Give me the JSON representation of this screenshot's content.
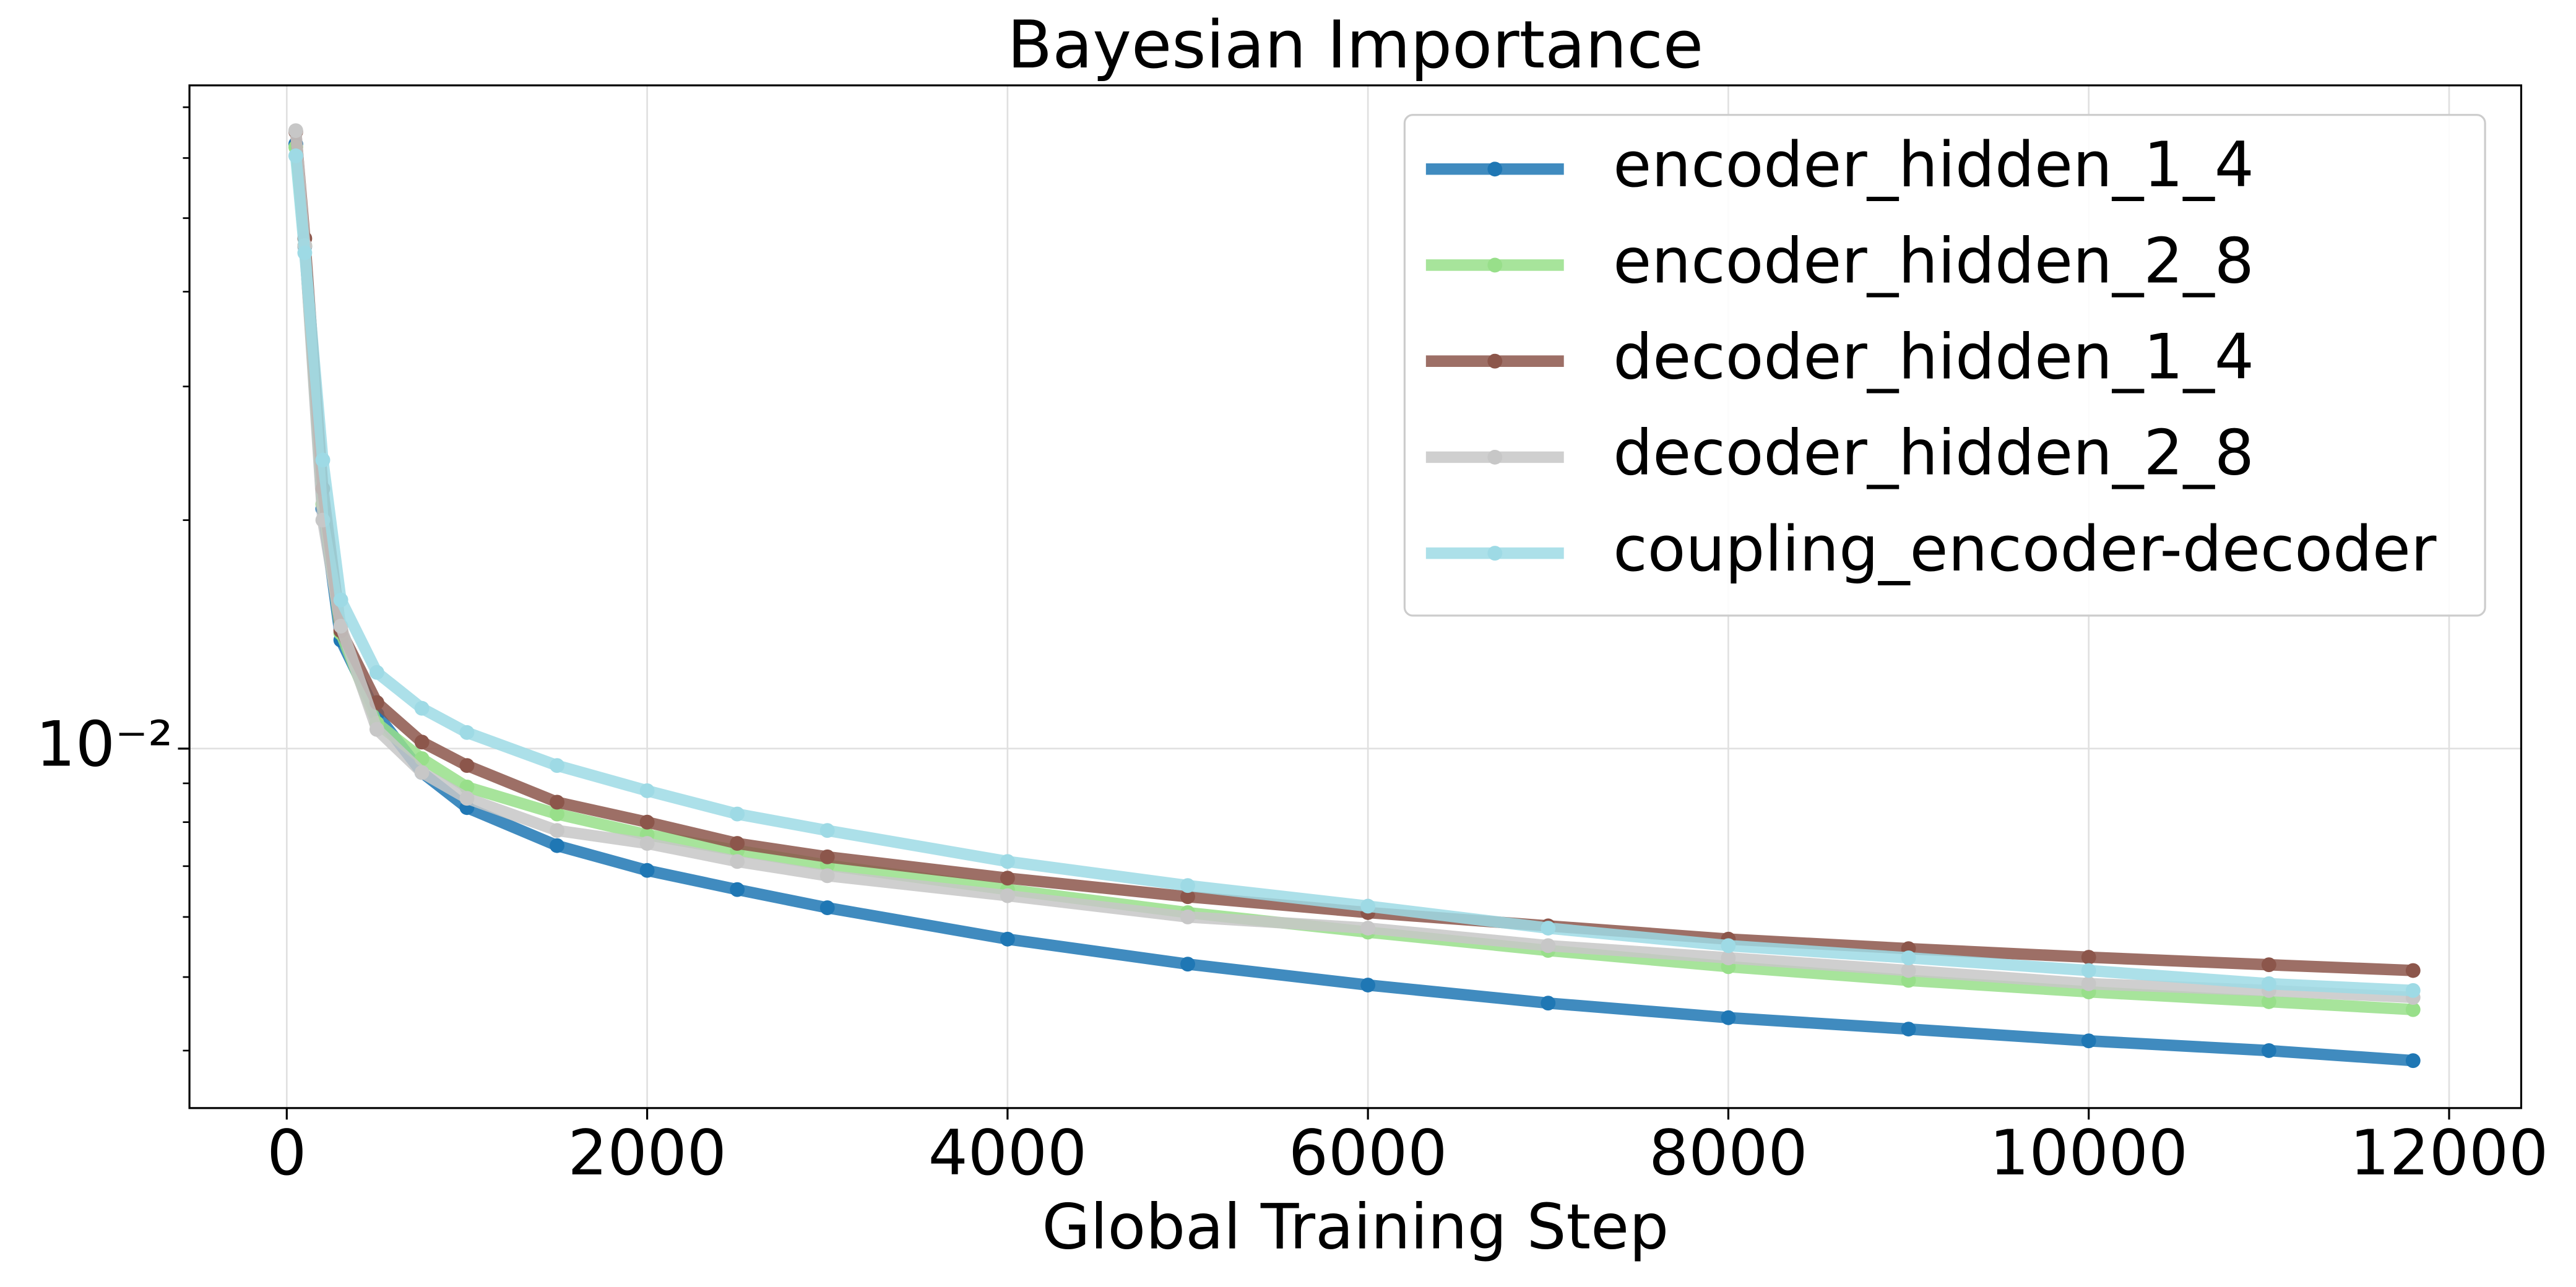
{
  "chart_data": {
    "type": "line",
    "title": "Bayesian Importance",
    "xlabel": "Global Training Step",
    "x": [
      50,
      100,
      200,
      300,
      500,
      750,
      1000,
      1500,
      2000,
      2500,
      3000,
      4000,
      5000,
      6000,
      7000,
      8000,
      9000,
      10000,
      11000,
      11800
    ],
    "series": [
      {
        "name": "encoder_hidden_1_4",
        "color": "#1f77b4",
        "values": [
          0.0626,
          0.0459,
          0.0207,
          0.0139,
          0.0111,
          0.0093,
          0.00836,
          0.00745,
          0.00691,
          0.00652,
          0.00617,
          0.00561,
          0.0052,
          0.00488,
          0.00462,
          0.00442,
          0.00427,
          0.00412,
          0.004,
          0.00388
        ]
      },
      {
        "name": "encoder_hidden_2_8",
        "color": "#98df8a",
        "values": [
          0.062,
          0.046,
          0.021,
          0.0142,
          0.0108,
          0.0097,
          0.0089,
          0.0082,
          0.0077,
          0.00734,
          0.00702,
          0.00652,
          0.00608,
          0.00573,
          0.00542,
          0.00516,
          0.00495,
          0.00478,
          0.00464,
          0.00453
        ]
      },
      {
        "name": "decoder_hidden_1_4",
        "color": "#8c564b",
        "values": [
          0.065,
          0.047,
          0.022,
          0.0143,
          0.0115,
          0.0102,
          0.0095,
          0.0085,
          0.008,
          0.0075,
          0.0072,
          0.00675,
          0.00638,
          0.00608,
          0.00584,
          0.00561,
          0.00545,
          0.00531,
          0.00519,
          0.0051
        ]
      },
      {
        "name": "decoder_hidden_2_8",
        "color": "#c7c7c7",
        "values": [
          0.0652,
          0.046,
          0.02,
          0.0145,
          0.0106,
          0.0093,
          0.0086,
          0.0078,
          0.0075,
          0.0071,
          0.0068,
          0.0064,
          0.006,
          0.0058,
          0.0055,
          0.0053,
          0.0051,
          0.0049,
          0.0048,
          0.0047
        ]
      },
      {
        "name": "coupling_encoder-decoder",
        "color": "#9edae5",
        "values": [
          0.0604,
          0.045,
          0.024,
          0.0157,
          0.0126,
          0.0113,
          0.0105,
          0.0095,
          0.0088,
          0.0082,
          0.0078,
          0.0071,
          0.0066,
          0.0062,
          0.0058,
          0.0055,
          0.0053,
          0.0051,
          0.0049,
          0.0048
        ]
      }
    ],
    "xlim": [
      -540,
      12400
    ],
    "xticks": [
      0,
      2000,
      4000,
      6000,
      8000,
      10000,
      12000
    ],
    "ylim": [
      0.00336,
      0.0748
    ],
    "y_log": true,
    "yticks": [
      {
        "value": 0.01,
        "label": "10⁻²"
      }
    ],
    "y_minor_ticks": [
      0.004,
      0.005,
      0.006,
      0.007,
      0.008,
      0.009,
      0.02,
      0.03,
      0.04,
      0.05,
      0.06,
      0.07
    ],
    "grid": true,
    "legend": "upper right"
  }
}
